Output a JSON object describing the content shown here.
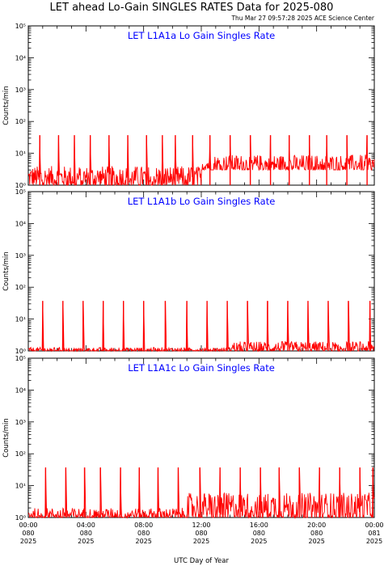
{
  "header": {
    "title": "LET ahead Lo-Gain SINGLES RATES Data for 2025-080",
    "stamp": "Thu Mar 27 09:57:28 2025 ACE Science Center"
  },
  "axes": {
    "xlabel": "UTC Day of Year",
    "ylabel": "Counts/min"
  },
  "chart_data": [
    {
      "type": "line",
      "title": "LET L1A1a Lo Gain Singles Rate",
      "ylabel": "Counts/min",
      "xlabel": "UTC Day of Year",
      "yscale": "log",
      "ylim": [
        1,
        100000
      ],
      "xlim": [
        "2025-080 00:00",
        "2025-081 00:00"
      ],
      "ytick_labels": [
        "10⁰",
        "10¹",
        "10²",
        "10³",
        "10⁴",
        "10⁵"
      ],
      "series": [
        {
          "color": "#ff0000",
          "background": [
            1,
            4
          ],
          "background_after_hour": 12,
          "background_after": [
            3,
            9
          ],
          "spike_hours": [
            0.8,
            2.1,
            3.2,
            4.3,
            5.6,
            6.9,
            8.2,
            9.3,
            10.2,
            11.4,
            12.6,
            14.0,
            15.4,
            16.8,
            18.1,
            19.5,
            20.7,
            22.1,
            23.5
          ],
          "spike_peak": 37
        }
      ]
    },
    {
      "type": "line",
      "title": "LET L1A1b Lo Gain Singles Rate",
      "ylabel": "Counts/min",
      "xlabel": "UTC Day of Year",
      "yscale": "log",
      "ylim": [
        1,
        100000
      ],
      "xlim": [
        "2025-080 00:00",
        "2025-081 00:00"
      ],
      "ytick_labels": [
        "10⁰",
        "10¹",
        "10²",
        "10³",
        "10⁴",
        "10⁵"
      ],
      "series": [
        {
          "color": "#ff0000",
          "background": [
            1,
            1.3
          ],
          "background_after_hour": 14,
          "background_after": [
            1,
            2
          ],
          "spike_hours": [
            1.0,
            2.4,
            3.8,
            5.2,
            6.6,
            8.0,
            9.5,
            11.0,
            12.4,
            13.8,
            15.2,
            16.6,
            18.0,
            19.4,
            20.8,
            22.2,
            23.7
          ],
          "spike_peak": 37
        }
      ]
    },
    {
      "type": "line",
      "title": "LET L1A1c Lo Gain Singles Rate",
      "ylabel": "Counts/min",
      "xlabel": "UTC Day of Year",
      "yscale": "log",
      "ylim": [
        1,
        100000
      ],
      "xlim": [
        "2025-080 00:00",
        "2025-081 00:00"
      ],
      "ytick_labels": [
        "10⁰",
        "10¹",
        "10²",
        "10³",
        "10⁴",
        "10⁵"
      ],
      "series": [
        {
          "color": "#ff0000",
          "background": [
            1,
            2
          ],
          "background_after_hour": 11,
          "background_after": [
            1,
            6
          ],
          "spike_hours": [
            1.2,
            2.6,
            3.9,
            5.0,
            6.4,
            7.7,
            9.0,
            10.4,
            11.9,
            13.3,
            14.7,
            16.1,
            17.4,
            18.8,
            20.2,
            21.6,
            23.0,
            23.9
          ],
          "spike_peak": 37
        }
      ]
    }
  ],
  "xaxis": {
    "ticks": [
      {
        "time": "00:00",
        "doy": "080",
        "year": "2025"
      },
      {
        "time": "04:00",
        "doy": "080",
        "year": "2025"
      },
      {
        "time": "08:00",
        "doy": "080",
        "year": "2025"
      },
      {
        "time": "12:00",
        "doy": "080",
        "year": "2025"
      },
      {
        "time": "16:00",
        "doy": "080",
        "year": "2025"
      },
      {
        "time": "20:00",
        "doy": "080",
        "year": "2025"
      },
      {
        "time": "00:00",
        "doy": "081",
        "year": "2025"
      }
    ]
  }
}
